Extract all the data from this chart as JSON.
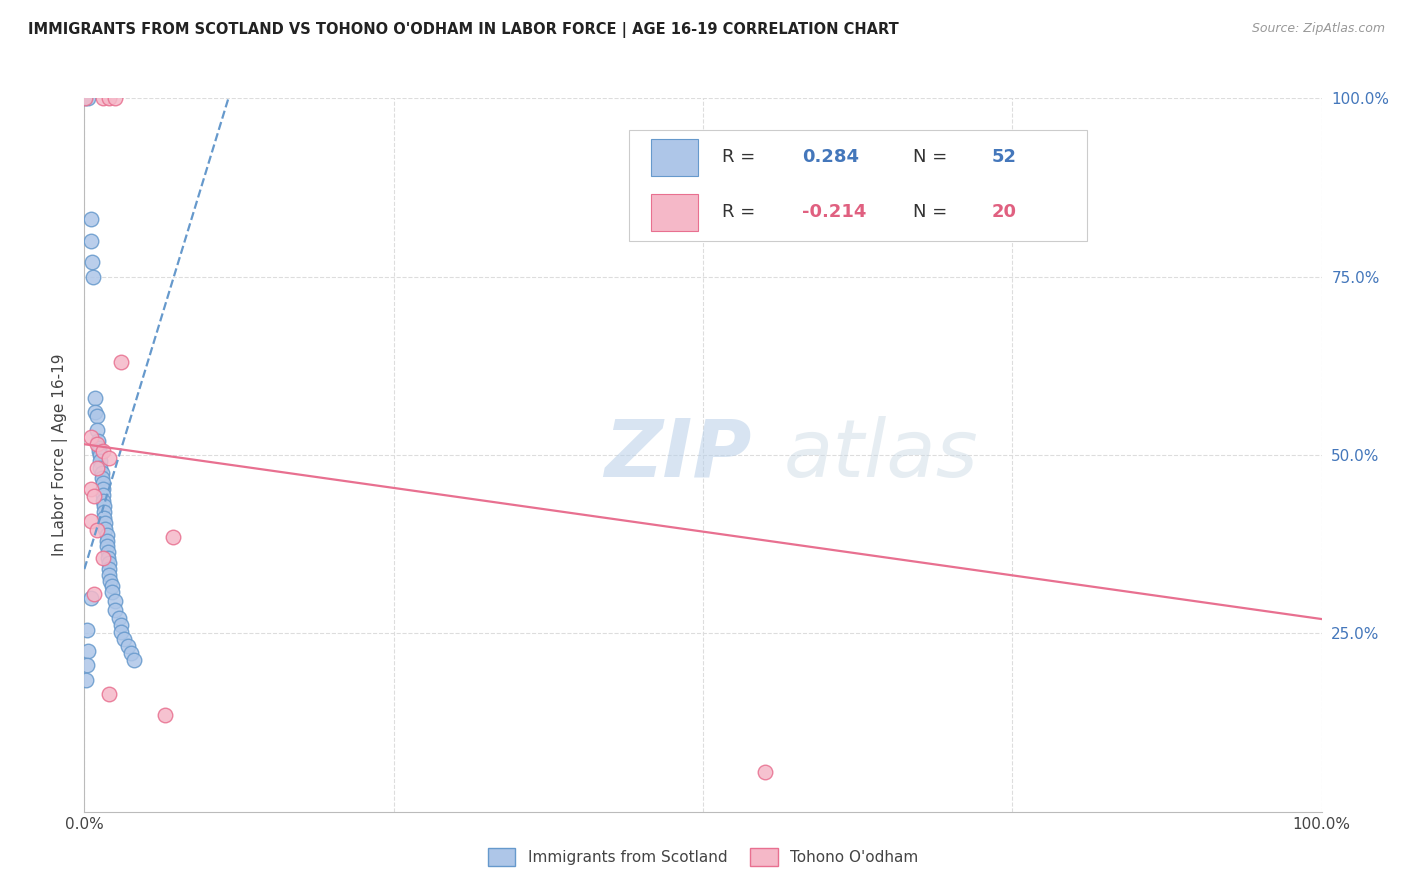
{
  "title": "IMMIGRANTS FROM SCOTLAND VS TOHONO O'ODHAM IN LABOR FORCE | AGE 16-19 CORRELATION CHART",
  "source": "Source: ZipAtlas.com",
  "ylabel_left": "In Labor Force | Age 16-19",
  "xlim": [
    0,
    1.0
  ],
  "ylim": [
    0,
    1.0
  ],
  "ytick_labels_right": [
    "25.0%",
    "50.0%",
    "75.0%",
    "100.0%"
  ],
  "legend_labels": [
    "Immigrants from Scotland",
    "Tohono O'odham"
  ],
  "blue_color": "#aec6e8",
  "pink_color": "#f5b8c8",
  "blue_edge_color": "#6699cc",
  "pink_edge_color": "#e87090",
  "blue_trend_color": "#6699cc",
  "pink_trend_color": "#e87090",
  "r_n_color_blue": "#4477bb",
  "r_n_color_pink": "#e06080",
  "blue_scatter": [
    [
      0.0008,
      1.0
    ],
    [
      0.003,
      1.0
    ],
    [
      0.005,
      0.83
    ],
    [
      0.005,
      0.8
    ],
    [
      0.006,
      0.77
    ],
    [
      0.007,
      0.75
    ],
    [
      0.009,
      0.58
    ],
    [
      0.009,
      0.56
    ],
    [
      0.01,
      0.555
    ],
    [
      0.01,
      0.535
    ],
    [
      0.011,
      0.52
    ],
    [
      0.012,
      0.51
    ],
    [
      0.012,
      0.505
    ],
    [
      0.013,
      0.5
    ],
    [
      0.013,
      0.492
    ],
    [
      0.013,
      0.482
    ],
    [
      0.014,
      0.475
    ],
    [
      0.014,
      0.468
    ],
    [
      0.015,
      0.46
    ],
    [
      0.015,
      0.452
    ],
    [
      0.015,
      0.444
    ],
    [
      0.015,
      0.436
    ],
    [
      0.016,
      0.428
    ],
    [
      0.016,
      0.42
    ],
    [
      0.016,
      0.412
    ],
    [
      0.017,
      0.404
    ],
    [
      0.017,
      0.396
    ],
    [
      0.018,
      0.388
    ],
    [
      0.018,
      0.38
    ],
    [
      0.018,
      0.372
    ],
    [
      0.019,
      0.364
    ],
    [
      0.019,
      0.356
    ],
    [
      0.02,
      0.348
    ],
    [
      0.02,
      0.34
    ],
    [
      0.02,
      0.332
    ],
    [
      0.021,
      0.324
    ],
    [
      0.022,
      0.316
    ],
    [
      0.022,
      0.308
    ],
    [
      0.025,
      0.295
    ],
    [
      0.025,
      0.282
    ],
    [
      0.028,
      0.272
    ],
    [
      0.03,
      0.262
    ],
    [
      0.03,
      0.252
    ],
    [
      0.032,
      0.242
    ],
    [
      0.035,
      0.232
    ],
    [
      0.038,
      0.222
    ],
    [
      0.04,
      0.212
    ],
    [
      0.005,
      0.3
    ],
    [
      0.002,
      0.255
    ],
    [
      0.003,
      0.225
    ],
    [
      0.002,
      0.205
    ],
    [
      0.001,
      0.185
    ]
  ],
  "pink_scatter": [
    [
      0.0008,
      1.0
    ],
    [
      0.015,
      1.0
    ],
    [
      0.02,
      1.0
    ],
    [
      0.025,
      1.0
    ],
    [
      0.03,
      0.63
    ],
    [
      0.005,
      0.525
    ],
    [
      0.01,
      0.515
    ],
    [
      0.015,
      0.505
    ],
    [
      0.02,
      0.495
    ],
    [
      0.01,
      0.482
    ],
    [
      0.005,
      0.452
    ],
    [
      0.008,
      0.442
    ],
    [
      0.005,
      0.408
    ],
    [
      0.01,
      0.395
    ],
    [
      0.015,
      0.355
    ],
    [
      0.008,
      0.305
    ],
    [
      0.072,
      0.385
    ],
    [
      0.02,
      0.165
    ],
    [
      0.065,
      0.135
    ],
    [
      0.55,
      0.055
    ]
  ],
  "blue_trend": {
    "x_start": 0.0,
    "x_end": 0.12,
    "y_start": 0.34,
    "y_end": 1.02
  },
  "pink_trend": {
    "x_start": 0.0,
    "x_end": 1.0,
    "y_start": 0.515,
    "y_end": 0.27
  },
  "watermark_zip": "ZIP",
  "watermark_atlas": "atlas",
  "background_color": "#ffffff",
  "grid_color": "#dddddd",
  "title_color": "#222222",
  "source_color": "#999999",
  "axis_label_color": "#444444",
  "tick_color": "#444444",
  "spine_color": "#bbbbbb"
}
